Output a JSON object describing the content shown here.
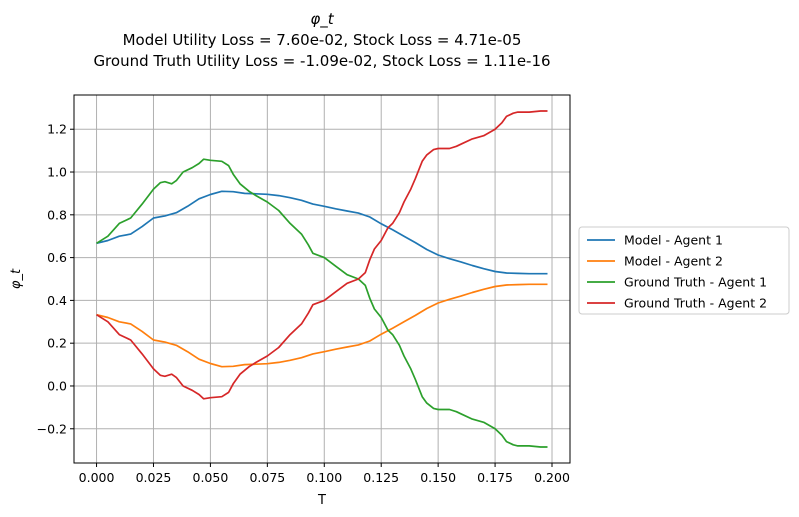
{
  "chart_data": {
    "type": "line",
    "title": "φ_t",
    "subtitle_lines": [
      "Model Utility Loss = 7.60e-02, Stock Loss = 4.71e-05",
      "Ground Truth Utility Loss = -1.09e-02, Stock Loss = 1.11e-16"
    ],
    "xlabel": "T",
    "ylabel": "φ_t",
    "xlim": [
      -0.0099,
      0.2079
    ],
    "ylim": [
      -0.36,
      1.36
    ],
    "xticks": [
      0.0,
      0.025,
      0.05,
      0.075,
      0.1,
      0.125,
      0.15,
      0.175,
      0.2
    ],
    "xtick_labels": [
      "0.000",
      "0.025",
      "0.050",
      "0.075",
      "0.100",
      "0.125",
      "0.150",
      "0.175",
      "0.200"
    ],
    "yticks": [
      -0.2,
      0.0,
      0.2,
      0.4,
      0.6,
      0.8,
      1.0,
      1.2
    ],
    "ytick_labels": [
      "−0.2",
      "0.0",
      "0.2",
      "0.4",
      "0.6",
      "0.8",
      "1.0",
      "1.2"
    ],
    "grid": true,
    "legend_position": "right-outside",
    "series": [
      {
        "name": "Model - Agent 1",
        "color": "#1f77b4",
        "points": [
          [
            0.0,
            0.667
          ],
          [
            0.005,
            0.68
          ],
          [
            0.01,
            0.7
          ],
          [
            0.015,
            0.71
          ],
          [
            0.02,
            0.745
          ],
          [
            0.025,
            0.785
          ],
          [
            0.03,
            0.795
          ],
          [
            0.035,
            0.81
          ],
          [
            0.04,
            0.84
          ],
          [
            0.045,
            0.875
          ],
          [
            0.05,
            0.895
          ],
          [
            0.055,
            0.91
          ],
          [
            0.06,
            0.908
          ],
          [
            0.065,
            0.9
          ],
          [
            0.07,
            0.898
          ],
          [
            0.075,
            0.896
          ],
          [
            0.08,
            0.89
          ],
          [
            0.085,
            0.88
          ],
          [
            0.09,
            0.868
          ],
          [
            0.095,
            0.85
          ],
          [
            0.1,
            0.84
          ],
          [
            0.105,
            0.828
          ],
          [
            0.11,
            0.818
          ],
          [
            0.115,
            0.808
          ],
          [
            0.12,
            0.79
          ],
          [
            0.125,
            0.758
          ],
          [
            0.13,
            0.73
          ],
          [
            0.135,
            0.7
          ],
          [
            0.14,
            0.67
          ],
          [
            0.145,
            0.638
          ],
          [
            0.15,
            0.612
          ],
          [
            0.155,
            0.595
          ],
          [
            0.16,
            0.58
          ],
          [
            0.165,
            0.563
          ],
          [
            0.17,
            0.548
          ],
          [
            0.175,
            0.535
          ],
          [
            0.18,
            0.528
          ],
          [
            0.185,
            0.526
          ],
          [
            0.19,
            0.525
          ],
          [
            0.195,
            0.525
          ],
          [
            0.198,
            0.525
          ]
        ]
      },
      {
        "name": "Model - Agent 2",
        "color": "#ff7f0e",
        "points": [
          [
            0.0,
            0.333
          ],
          [
            0.005,
            0.32
          ],
          [
            0.01,
            0.3
          ],
          [
            0.015,
            0.29
          ],
          [
            0.02,
            0.255
          ],
          [
            0.025,
            0.215
          ],
          [
            0.03,
            0.205
          ],
          [
            0.035,
            0.19
          ],
          [
            0.04,
            0.16
          ],
          [
            0.045,
            0.125
          ],
          [
            0.05,
            0.105
          ],
          [
            0.055,
            0.09
          ],
          [
            0.06,
            0.092
          ],
          [
            0.065,
            0.1
          ],
          [
            0.07,
            0.102
          ],
          [
            0.075,
            0.104
          ],
          [
            0.08,
            0.11
          ],
          [
            0.085,
            0.12
          ],
          [
            0.09,
            0.132
          ],
          [
            0.095,
            0.15
          ],
          [
            0.1,
            0.16
          ],
          [
            0.105,
            0.172
          ],
          [
            0.11,
            0.182
          ],
          [
            0.115,
            0.192
          ],
          [
            0.12,
            0.21
          ],
          [
            0.125,
            0.242
          ],
          [
            0.13,
            0.27
          ],
          [
            0.135,
            0.3
          ],
          [
            0.14,
            0.33
          ],
          [
            0.145,
            0.362
          ],
          [
            0.15,
            0.388
          ],
          [
            0.155,
            0.405
          ],
          [
            0.16,
            0.42
          ],
          [
            0.165,
            0.437
          ],
          [
            0.17,
            0.452
          ],
          [
            0.175,
            0.465
          ],
          [
            0.18,
            0.472
          ],
          [
            0.185,
            0.474
          ],
          [
            0.19,
            0.475
          ],
          [
            0.195,
            0.475
          ],
          [
            0.198,
            0.475
          ]
        ]
      },
      {
        "name": "Ground Truth - Agent 1",
        "color": "#2ca02c",
        "points": [
          [
            0.0,
            0.667
          ],
          [
            0.005,
            0.7
          ],
          [
            0.01,
            0.76
          ],
          [
            0.015,
            0.785
          ],
          [
            0.02,
            0.85
          ],
          [
            0.025,
            0.92
          ],
          [
            0.028,
            0.95
          ],
          [
            0.03,
            0.955
          ],
          [
            0.033,
            0.945
          ],
          [
            0.035,
            0.96
          ],
          [
            0.038,
            1.0
          ],
          [
            0.042,
            1.02
          ],
          [
            0.045,
            1.04
          ],
          [
            0.047,
            1.06
          ],
          [
            0.05,
            1.055
          ],
          [
            0.055,
            1.05
          ],
          [
            0.058,
            1.03
          ],
          [
            0.06,
            0.99
          ],
          [
            0.063,
            0.945
          ],
          [
            0.067,
            0.91
          ],
          [
            0.07,
            0.89
          ],
          [
            0.075,
            0.86
          ],
          [
            0.08,
            0.82
          ],
          [
            0.085,
            0.76
          ],
          [
            0.09,
            0.71
          ],
          [
            0.093,
            0.66
          ],
          [
            0.095,
            0.62
          ],
          [
            0.1,
            0.6
          ],
          [
            0.105,
            0.56
          ],
          [
            0.11,
            0.52
          ],
          [
            0.115,
            0.5
          ],
          [
            0.118,
            0.47
          ],
          [
            0.12,
            0.41
          ],
          [
            0.122,
            0.36
          ],
          [
            0.125,
            0.32
          ],
          [
            0.128,
            0.26
          ],
          [
            0.13,
            0.24
          ],
          [
            0.133,
            0.19
          ],
          [
            0.135,
            0.14
          ],
          [
            0.138,
            0.08
          ],
          [
            0.14,
            0.03
          ],
          [
            0.143,
            -0.05
          ],
          [
            0.145,
            -0.08
          ],
          [
            0.148,
            -0.105
          ],
          [
            0.15,
            -0.11
          ],
          [
            0.155,
            -0.11
          ],
          [
            0.158,
            -0.12
          ],
          [
            0.16,
            -0.13
          ],
          [
            0.165,
            -0.155
          ],
          [
            0.17,
            -0.17
          ],
          [
            0.175,
            -0.2
          ],
          [
            0.178,
            -0.23
          ],
          [
            0.18,
            -0.26
          ],
          [
            0.183,
            -0.275
          ],
          [
            0.185,
            -0.28
          ],
          [
            0.19,
            -0.28
          ],
          [
            0.195,
            -0.285
          ],
          [
            0.198,
            -0.285
          ]
        ]
      },
      {
        "name": "Ground Truth - Agent 2",
        "color": "#d62728",
        "points": [
          [
            0.0,
            0.333
          ],
          [
            0.005,
            0.3
          ],
          [
            0.01,
            0.24
          ],
          [
            0.015,
            0.215
          ],
          [
            0.02,
            0.15
          ],
          [
            0.025,
            0.08
          ],
          [
            0.028,
            0.05
          ],
          [
            0.03,
            0.045
          ],
          [
            0.033,
            0.055
          ],
          [
            0.035,
            0.04
          ],
          [
            0.038,
            0.0
          ],
          [
            0.042,
            -0.02
          ],
          [
            0.045,
            -0.04
          ],
          [
            0.047,
            -0.06
          ],
          [
            0.05,
            -0.055
          ],
          [
            0.055,
            -0.05
          ],
          [
            0.058,
            -0.03
          ],
          [
            0.06,
            0.01
          ],
          [
            0.063,
            0.055
          ],
          [
            0.067,
            0.09
          ],
          [
            0.07,
            0.11
          ],
          [
            0.075,
            0.14
          ],
          [
            0.08,
            0.18
          ],
          [
            0.085,
            0.24
          ],
          [
            0.09,
            0.29
          ],
          [
            0.093,
            0.34
          ],
          [
            0.095,
            0.38
          ],
          [
            0.1,
            0.4
          ],
          [
            0.105,
            0.44
          ],
          [
            0.11,
            0.48
          ],
          [
            0.115,
            0.5
          ],
          [
            0.118,
            0.53
          ],
          [
            0.12,
            0.59
          ],
          [
            0.122,
            0.64
          ],
          [
            0.125,
            0.68
          ],
          [
            0.128,
            0.74
          ],
          [
            0.13,
            0.76
          ],
          [
            0.133,
            0.81
          ],
          [
            0.135,
            0.86
          ],
          [
            0.138,
            0.92
          ],
          [
            0.14,
            0.97
          ],
          [
            0.143,
            1.05
          ],
          [
            0.145,
            1.08
          ],
          [
            0.148,
            1.105
          ],
          [
            0.15,
            1.11
          ],
          [
            0.155,
            1.11
          ],
          [
            0.158,
            1.12
          ],
          [
            0.16,
            1.13
          ],
          [
            0.165,
            1.155
          ],
          [
            0.17,
            1.17
          ],
          [
            0.175,
            1.2
          ],
          [
            0.178,
            1.23
          ],
          [
            0.18,
            1.26
          ],
          [
            0.183,
            1.275
          ],
          [
            0.185,
            1.28
          ],
          [
            0.19,
            1.28
          ],
          [
            0.195,
            1.285
          ],
          [
            0.198,
            1.285
          ]
        ]
      }
    ]
  }
}
